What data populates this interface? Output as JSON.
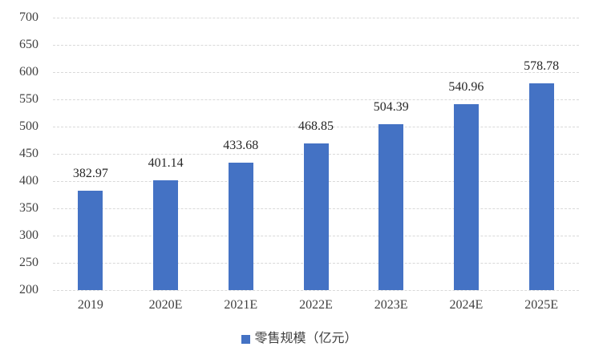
{
  "chart_data": {
    "type": "bar",
    "title": "",
    "xlabel": "",
    "ylabel": "",
    "categories": [
      "2019",
      "2020E",
      "2021E",
      "2022E",
      "2023E",
      "2024E",
      "2025E"
    ],
    "series": [
      {
        "name": "零售规模（亿元）",
        "values": [
          382.97,
          401.14,
          433.68,
          468.85,
          504.39,
          540.96,
          578.78
        ]
      }
    ],
    "value_labels": [
      "382.97",
      "401.14",
      "433.68",
      "468.85",
      "504.39",
      "540.96",
      "578.78"
    ],
    "ylim": [
      200,
      700
    ],
    "ytick_step": 50,
    "yticks": [
      200,
      250,
      300,
      350,
      400,
      450,
      500,
      550,
      600,
      650,
      700
    ],
    "grid": true,
    "gridline_style": "dashed",
    "legend_position": "bottom",
    "colors": {
      "bar": "#4472c4",
      "gridline": "#d9d9d9",
      "axis_text": "#404040",
      "data_label_text": "#262626",
      "background": "#ffffff"
    }
  },
  "legend": {
    "items": [
      {
        "label": "零售规模（亿元）",
        "color": "#4472c4"
      }
    ]
  }
}
